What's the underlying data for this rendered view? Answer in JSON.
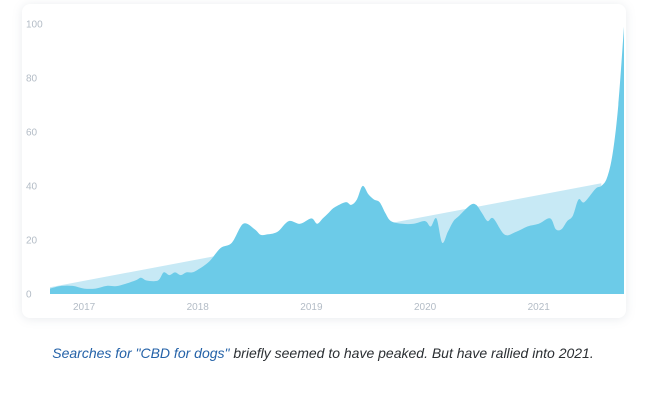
{
  "chart_data": {
    "type": "area",
    "title": "",
    "xlabel": "",
    "ylabel": "",
    "ylim": [
      0,
      100
    ],
    "xlim": [
      2016.7,
      2021.75
    ],
    "yticks": [
      0,
      20,
      40,
      60,
      80,
      100
    ],
    "xtick_labels": [
      "2017",
      "2018",
      "2019",
      "2020",
      "2021"
    ],
    "xtick_values": [
      2017,
      2018,
      2019,
      2020,
      2021
    ],
    "grid": false,
    "legend": "none",
    "colors": {
      "area": "#6ccbe8",
      "trend": "#c7e9f5"
    },
    "series": [
      {
        "x": [
          2016.7,
          2016.8,
          2016.9,
          2017.0,
          2017.1,
          2017.2,
          2017.3,
          2017.45,
          2017.5,
          2017.55,
          2017.65,
          2017.7,
          2017.75,
          2017.8,
          2017.85,
          2017.9,
          2017.95,
          2018.0,
          2018.1,
          2018.2,
          2018.3,
          2018.4,
          2018.5,
          2018.55,
          2018.6,
          2018.7,
          2018.8,
          2018.9,
          2019.0,
          2019.05,
          2019.1,
          2019.15,
          2019.2,
          2019.3,
          2019.35,
          2019.4,
          2019.45,
          2019.5,
          2019.55,
          2019.6,
          2019.65,
          2019.7,
          2019.8,
          2019.9,
          2020.0,
          2020.05,
          2020.1,
          2020.15,
          2020.2,
          2020.25,
          2020.3,
          2020.4,
          2020.45,
          2020.5,
          2020.55,
          2020.6,
          2020.7,
          2020.8,
          2020.9,
          2021.0,
          2021.1,
          2021.15,
          2021.2,
          2021.25,
          2021.3,
          2021.35,
          2021.4,
          2021.5,
          2021.55,
          2021.6,
          2021.65,
          2021.7,
          2021.75
        ],
        "values": [
          2,
          3,
          3,
          2,
          2,
          3,
          3,
          5,
          6,
          5,
          5,
          8,
          7,
          8,
          7,
          8,
          8,
          9,
          12,
          17,
          19,
          26,
          24,
          22,
          22,
          23,
          27,
          26,
          28,
          26,
          28,
          30,
          32,
          34,
          33,
          35,
          40,
          37,
          35,
          34,
          30,
          27,
          26,
          26,
          27,
          25,
          28,
          19,
          23,
          27,
          29,
          33,
          33,
          30,
          27,
          28,
          22,
          23,
          25,
          26,
          28,
          24,
          24,
          27,
          29,
          35,
          34,
          39,
          40,
          43,
          52,
          70,
          99
        ]
      }
    ],
    "trend": {
      "x": [
        2016.7,
        2021.55
      ],
      "values": [
        2.5,
        41
      ]
    }
  },
  "caption": {
    "highlight": "Searches for \"CBD for dogs\"",
    "rest": " briefly seemed to have peaked. But have rallied into 2021."
  }
}
